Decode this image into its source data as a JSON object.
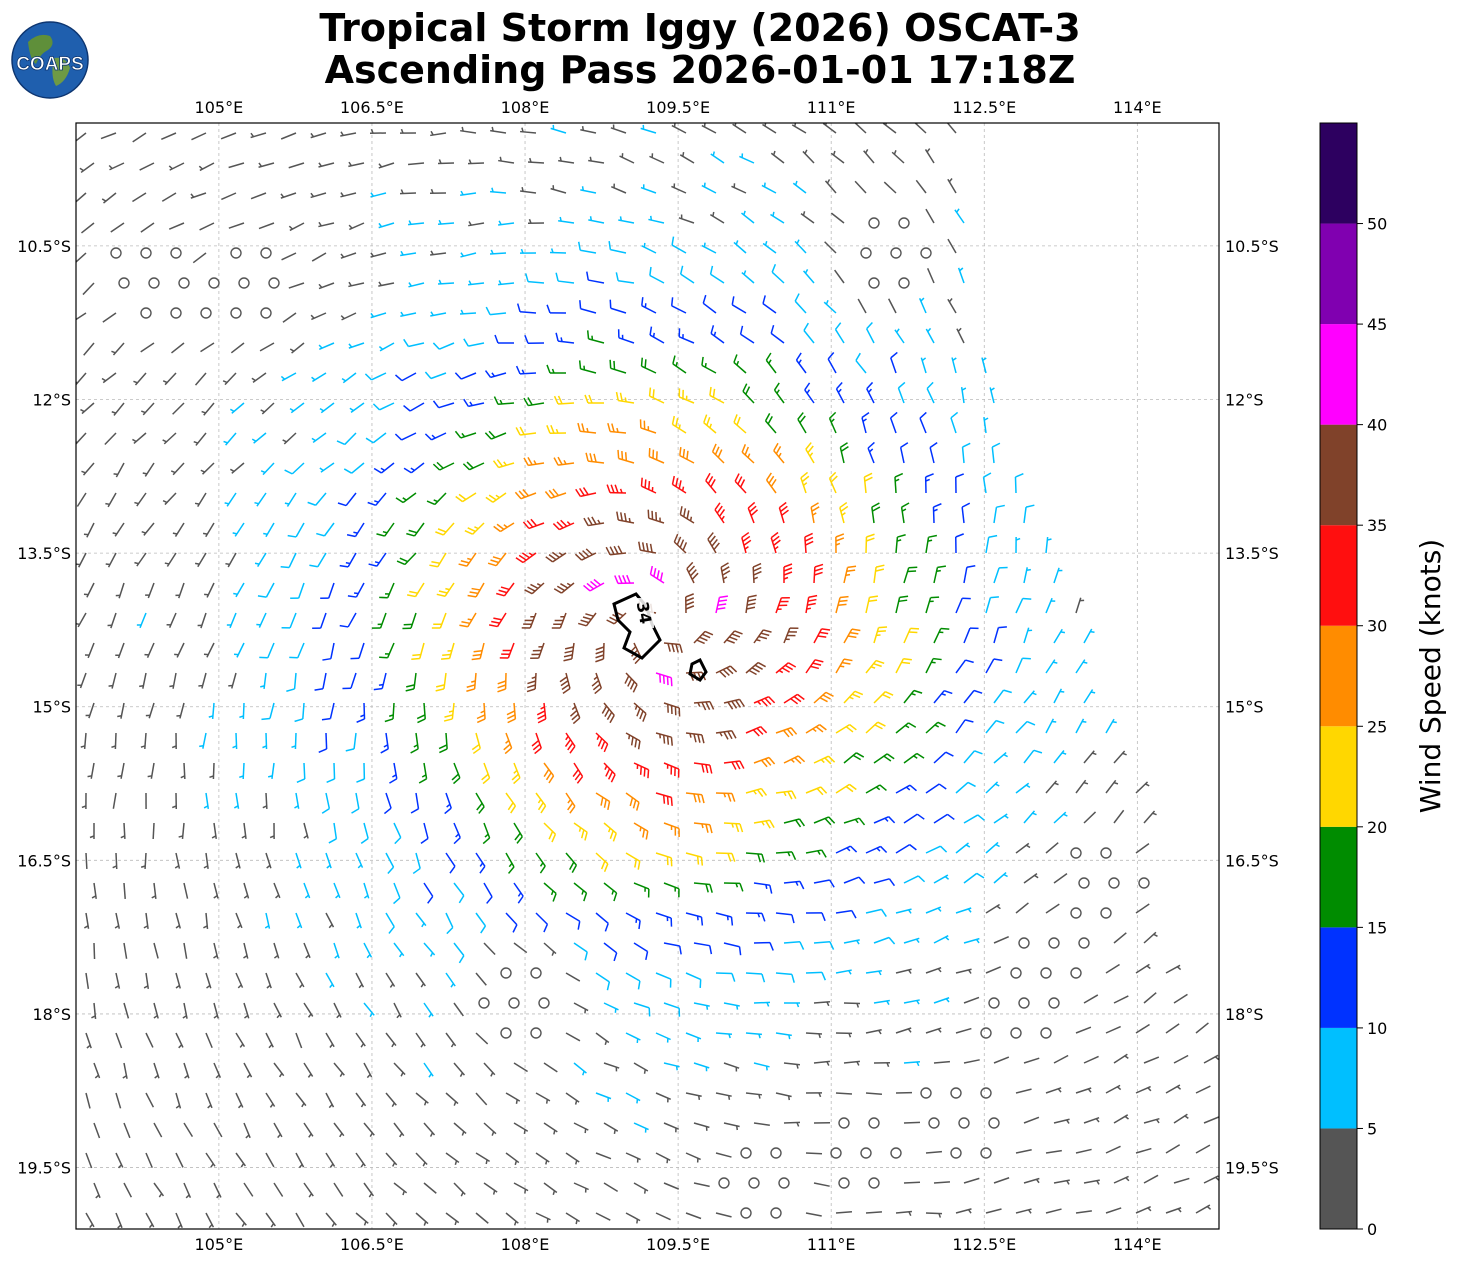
{
  "header": {
    "title_line1": "Tropical Storm Iggy (2026) OSCAT-3",
    "title_line2": "Ascending Pass 2026-01-01 17:18Z"
  },
  "logo": {
    "text": "COAPS",
    "icon": "globe-logo"
  },
  "map": {
    "lon_ticks": [
      "105°E",
      "106.5°E",
      "108°E",
      "109.5°E",
      "111°E",
      "112.5°E",
      "114°E"
    ],
    "lat_ticks": [
      "10.5°S",
      "12°S",
      "13.5°S",
      "15°S",
      "16.5°S",
      "18°S",
      "19.5°S"
    ],
    "lon_range": [
      103.6,
      114.8
    ],
    "lat_range": [
      9.3,
      20.1
    ],
    "grid": "dashed",
    "storm_center": {
      "lon": 109.3,
      "lat": 14.2
    },
    "contour_label": "34",
    "calm_symbol": "open-circle",
    "barb_type": "wind-barbs-knots"
  },
  "colorbar": {
    "label": "Wind Speed (knots)",
    "ticks": [
      "0",
      "5",
      "10",
      "15",
      "20",
      "25",
      "30",
      "35",
      "40",
      "45",
      "50"
    ],
    "bins": [
      {
        "min": 0,
        "max": 5,
        "color": "#555555"
      },
      {
        "min": 5,
        "max": 10,
        "color": "#00bfff"
      },
      {
        "min": 10,
        "max": 15,
        "color": "#0032ff"
      },
      {
        "min": 15,
        "max": 20,
        "color": "#008c00"
      },
      {
        "min": 20,
        "max": 25,
        "color": "#ffd700"
      },
      {
        "min": 25,
        "max": 30,
        "color": "#ff8c00"
      },
      {
        "min": 30,
        "max": 35,
        "color": "#ff0f0f"
      },
      {
        "min": 35,
        "max": 40,
        "color": "#80422a"
      },
      {
        "min": 40,
        "max": 45,
        "color": "#ff00ff"
      },
      {
        "min": 45,
        "max": 50,
        "color": "#8000b0"
      },
      {
        "min": 50,
        "max": 55,
        "color": "#2d0060"
      }
    ]
  }
}
